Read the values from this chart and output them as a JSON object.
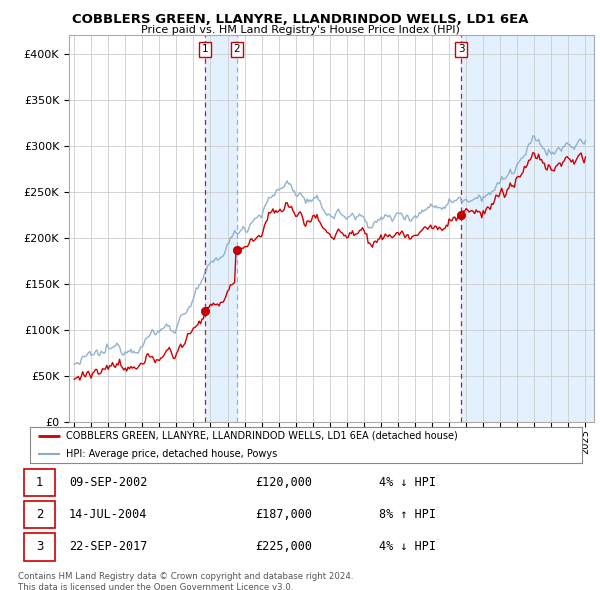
{
  "title": "COBBLERS GREEN, LLANYRE, LLANDRINDOD WELLS, LD1 6EA",
  "subtitle": "Price paid vs. HM Land Registry's House Price Index (HPI)",
  "legend_line1": "COBBLERS GREEN, LLANYRE, LLANDRINDOD WELLS, LD1 6EA (detached house)",
  "legend_line2": "HPI: Average price, detached house, Powys",
  "footer1": "Contains HM Land Registry data © Crown copyright and database right 2024.",
  "footer2": "This data is licensed under the Open Government Licence v3.0.",
  "transactions": [
    {
      "num": 1,
      "date": "09-SEP-2002",
      "price": "£120,000",
      "hpi": "4% ↓ HPI",
      "year": 2002.69,
      "price_val": 120000,
      "vline_style": "red"
    },
    {
      "num": 2,
      "date": "14-JUL-2004",
      "price": "£187,000",
      "hpi": "8% ↑ HPI",
      "year": 2004.54,
      "price_val": 187000,
      "vline_style": "blue"
    },
    {
      "num": 3,
      "date": "22-SEP-2017",
      "price": "£225,000",
      "hpi": "4% ↓ HPI",
      "year": 2017.72,
      "price_val": 225000,
      "vline_style": "red"
    }
  ],
  "price_color": "#cc0000",
  "hpi_color": "#88aacc",
  "shade_color": "#ddeeff",
  "background_color": "#ffffff",
  "grid_color": "#cccccc",
  "ylim": [
    0,
    420000
  ],
  "yticks": [
    0,
    50000,
    100000,
    150000,
    200000,
    250000,
    300000,
    350000,
    400000
  ],
  "ytick_labels": [
    "£0",
    "£50K",
    "£100K",
    "£150K",
    "£200K",
    "£250K",
    "£300K",
    "£350K",
    "£400K"
  ],
  "year_start": 1995,
  "year_end": 2025
}
